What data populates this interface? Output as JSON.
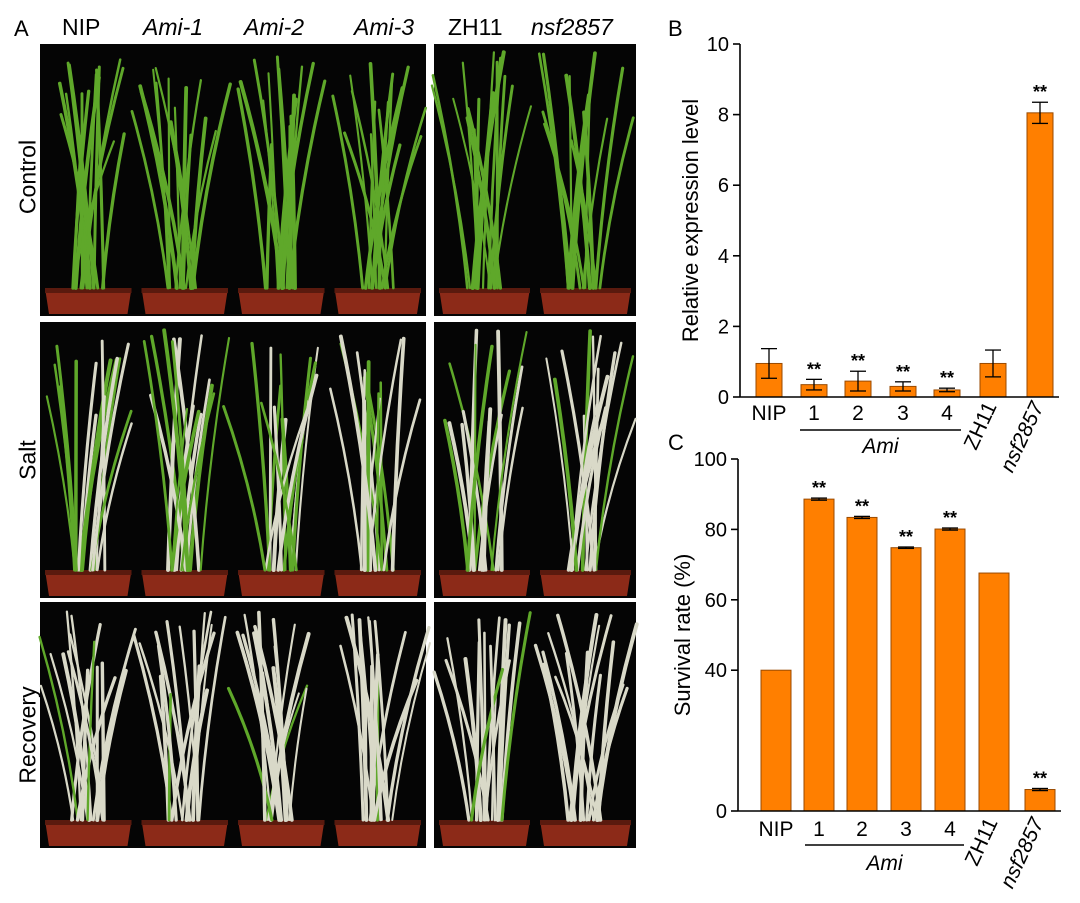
{
  "colors": {
    "bar": "#ff7f00",
    "bar_stroke": "#9a4a00",
    "photo_bg": "#050505",
    "leaf_healthy": "#5fa82a",
    "leaf_wilted": "#d9d9c8",
    "pot": "#8c2a18"
  },
  "panel_a": {
    "letter": "A",
    "groups": [
      {
        "labels": [
          "NIP",
          "Ami-1",
          "Ami-2",
          "Ami-3"
        ],
        "italic": [
          false,
          true,
          true,
          true
        ]
      },
      {
        "labels": [
          "ZH11",
          "nsf2857"
        ],
        "italic": [
          false,
          true
        ]
      }
    ],
    "conditions": [
      "Control",
      "Salt",
      "Recovery"
    ]
  },
  "chart_data": [
    {
      "panel": "B",
      "type": "bar",
      "ylabel": "Relative expression level",
      "ylim": [
        0,
        10
      ],
      "yticks": [
        0,
        2,
        4,
        6,
        8,
        10
      ],
      "categories": [
        "NIP",
        "1",
        "2",
        "3",
        "4",
        "ZH11",
        "nsf2857"
      ],
      "italic_categories": [
        "nsf2857"
      ],
      "rotated_categories": [
        "ZH11",
        "nsf2857"
      ],
      "group_label": "Ami",
      "group_members": [
        "1",
        "2",
        "3",
        "4"
      ],
      "values": [
        0.95,
        0.35,
        0.45,
        0.3,
        0.2,
        0.95,
        8.05
      ],
      "errors": [
        0.42,
        0.15,
        0.28,
        0.13,
        0.05,
        0.38,
        0.3
      ],
      "significance": [
        "",
        "**",
        "**",
        "**",
        "**",
        "",
        "**"
      ]
    },
    {
      "panel": "C",
      "type": "bar",
      "ylabel": "Survival rate (%)",
      "ylim": [
        0,
        100
      ],
      "yticks": [
        0,
        40,
        60,
        80,
        100
      ],
      "categories": [
        "NIP",
        "1",
        "2",
        "3",
        "4",
        "ZH11",
        "nsf2857"
      ],
      "italic_categories": [
        "nsf2857"
      ],
      "rotated_categories": [
        "ZH11",
        "nsf2857"
      ],
      "group_label": "Ami",
      "group_members": [
        "1",
        "2",
        "3",
        "4"
      ],
      "values": [
        40,
        88.6,
        83.4,
        74.8,
        80.1,
        67.6,
        6.1
      ],
      "errors": [
        0,
        0.3,
        0.3,
        0.2,
        0.3,
        0,
        0.3
      ],
      "significance": [
        "",
        "**",
        "**",
        "**",
        "**",
        "",
        "**"
      ]
    }
  ]
}
